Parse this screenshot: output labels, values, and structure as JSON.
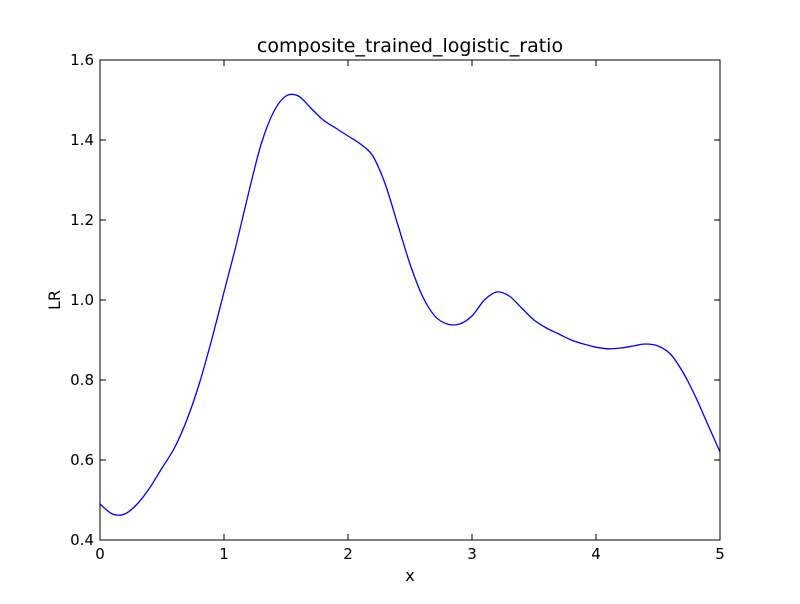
{
  "chart_data": {
    "type": "line",
    "title": "composite_trained_logistic_ratio",
    "xlabel": "x",
    "ylabel": "LR",
    "xlim": [
      0,
      5
    ],
    "ylim": [
      0.4,
      1.6
    ],
    "xticks": [
      0,
      1,
      2,
      3,
      4,
      5
    ],
    "xtick_labels": [
      "0",
      "1",
      "2",
      "3",
      "4",
      "5"
    ],
    "yticks": [
      0.4,
      0.6,
      0.8,
      1.0,
      1.2,
      1.4,
      1.6
    ],
    "ytick_labels": [
      "0.4",
      "0.6",
      "0.8",
      "1.0",
      "1.2",
      "1.4",
      "1.6"
    ],
    "grid": false,
    "series": [
      {
        "color": "#0000ff",
        "x": [
          0,
          0.1,
          0.2,
          0.3,
          0.4,
          0.5,
          0.6,
          0.7,
          0.8,
          0.9,
          1.0,
          1.1,
          1.2,
          1.3,
          1.4,
          1.5,
          1.6,
          1.7,
          1.8,
          1.9,
          2.0,
          2.1,
          2.2,
          2.3,
          2.4,
          2.5,
          2.6,
          2.7,
          2.8,
          2.9,
          3.0,
          3.1,
          3.2,
          3.3,
          3.4,
          3.5,
          3.6,
          3.7,
          3.8,
          3.9,
          4.0,
          4.1,
          4.2,
          4.3,
          4.4,
          4.5,
          4.6,
          4.7,
          4.8,
          4.9,
          5.0
        ],
        "y": [
          0.49,
          0.465,
          0.465,
          0.49,
          0.53,
          0.58,
          0.63,
          0.7,
          0.79,
          0.9,
          1.02,
          1.14,
          1.27,
          1.39,
          1.47,
          1.51,
          1.51,
          1.48,
          1.45,
          1.43,
          1.41,
          1.39,
          1.36,
          1.29,
          1.19,
          1.09,
          1.01,
          0.96,
          0.94,
          0.94,
          0.96,
          1.0,
          1.02,
          1.01,
          0.98,
          0.95,
          0.93,
          0.915,
          0.9,
          0.89,
          0.882,
          0.878,
          0.88,
          0.885,
          0.89,
          0.885,
          0.865,
          0.82,
          0.76,
          0.69,
          0.62
        ]
      }
    ]
  }
}
